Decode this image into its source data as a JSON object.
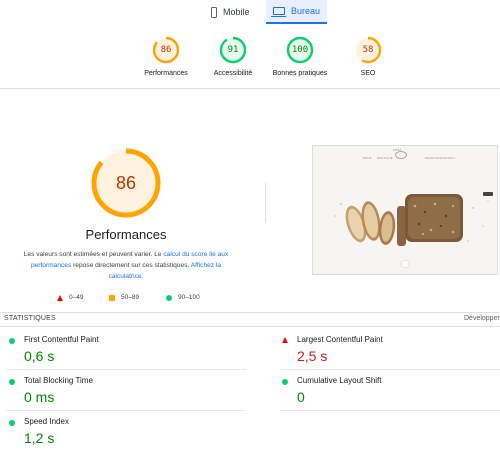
{
  "device_tabs": [
    {
      "label": "Mobile",
      "icon": "phone-icon",
      "selected": false
    },
    {
      "label": "Bureau",
      "icon": "laptop-icon",
      "selected": true
    }
  ],
  "categories": [
    {
      "score": "86",
      "score_value": 86,
      "label": "Performances",
      "color": "#ffa400",
      "text_color": "#c33300",
      "bg": "#fff3e0"
    },
    {
      "score": "91",
      "score_value": 91,
      "label": "Accessibilité",
      "color": "#0cce6b",
      "text_color": "#008800",
      "bg": "#e6f9ee"
    },
    {
      "score": "100",
      "score_value": 100,
      "label": "Bonnes pratiques",
      "color": "#0cce6b",
      "text_color": "#008800",
      "bg": "#e6f9ee"
    },
    {
      "score": "58",
      "score_value": 58,
      "label": "SEO",
      "color": "#ffa400",
      "text_color": "#c33300",
      "bg": "#fff3e0"
    }
  ],
  "main": {
    "score": "86",
    "score_value": 86,
    "title": "Performances",
    "desc_part1": "Les valeurs sont estimées et peuvent varier. Le ",
    "desc_link1": "calcul du score lié aux performances",
    "desc_part2": " repose directement sur ces statistiques. ",
    "desc_link2": "Affichez la calculatrice",
    "desc_part3": ".",
    "legend": [
      {
        "symbol": "triangle",
        "label": "0–49",
        "color": "#eb0f00"
      },
      {
        "symbol": "square",
        "label": "50–89",
        "color": "#ffa400"
      },
      {
        "symbol": "circle",
        "label": "90–100",
        "color": "#0cce6b"
      }
    ]
  },
  "thumbnail": {
    "logo": "SISSA",
    "nav": [
      "NOUS",
      "BOUTIQUE",
      "RECETTES",
      "CONTACT"
    ]
  },
  "stats": {
    "title": "STATISTIQUES",
    "expand_label": "Développer",
    "metrics": [
      {
        "name": "First Contentful Paint",
        "value": "0,6 s",
        "status": "pass"
      },
      {
        "name": "Largest Contentful Paint",
        "value": "2,5 s",
        "status": "fail"
      },
      {
        "name": "Total Blocking Time",
        "value": "0 ms",
        "status": "pass"
      },
      {
        "name": "Cumulative Layout Shift",
        "value": "0",
        "status": "pass"
      },
      {
        "name": "Speed Index",
        "value": "1,2 s",
        "status": "pass"
      }
    ]
  }
}
